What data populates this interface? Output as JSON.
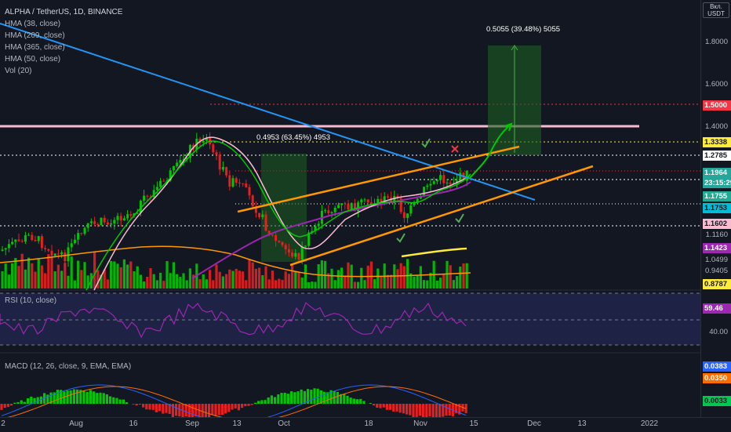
{
  "legend": {
    "symbol": "ALPHA / TetherUS, 1D, BINANCE",
    "indicators": [
      "HMA (38, close)",
      "HMA (209, close)",
      "HMA (365, close)",
      "HMA (50, close)",
      "Vol (20)"
    ]
  },
  "currency": {
    "top": "Вкл.",
    "bottom": "USDT"
  },
  "price_axis": {
    "labels": [
      "1.8000",
      "1.6000",
      "1.4000",
      "1.1160",
      "1.0499",
      "0.9405"
    ],
    "tags": [
      {
        "text": "1.5000",
        "bg": "#f23645",
        "fg": "#ffffff"
      },
      {
        "text": "1.3338",
        "bg": "#ffeb3b",
        "fg": "#131722"
      },
      {
        "text": "1.2785",
        "bg": "#ffffff",
        "fg": "#131722"
      },
      {
        "text": "1.1964",
        "bg": "#26a69a",
        "fg": "#ffffff"
      },
      {
        "text": "23:15:29",
        "bg": "#26a69a",
        "fg": "#ffffff"
      },
      {
        "text": "1.1755",
        "bg": "#22ab94",
        "fg": "#ffffff"
      },
      {
        "text": "1.1753",
        "bg": "#00bcd4",
        "fg": "#131722"
      },
      {
        "text": "1.1602",
        "bg": "#f8bbd0",
        "fg": "#131722"
      },
      {
        "text": "1.1423",
        "bg": "#9c27b0",
        "fg": "#ffffff"
      },
      {
        "text": "0.8787",
        "bg": "#ffeb3b",
        "fg": "#131722"
      }
    ]
  },
  "annotations": {
    "measure_1": "0.4953 (63.45%) 4953",
    "measure_2": "0.5055 (39.48%) 5055"
  },
  "rsi": {
    "title": "RSI (10, close)",
    "value_tag": "59.46",
    "value_bg": "#9c27b0",
    "axis_label": "40.00"
  },
  "macd": {
    "title": "MACD (12, 26, close, 9, EMA, EMA)",
    "tags": [
      {
        "text": "0.0383",
        "bg": "#2962ff",
        "fg": "#ffffff"
      },
      {
        "text": "0.0350",
        "bg": "#ff6d00",
        "fg": "#ffffff"
      },
      {
        "text": "0.0033",
        "bg": "#00c853",
        "fg": "#131722"
      }
    ]
  },
  "time_axis": [
    "2",
    "Aug",
    "16",
    "Sep",
    "13",
    "Oct",
    "18",
    "Nov",
    "15",
    "Dec",
    "13",
    "2022"
  ],
  "colors": {
    "up": "#00c800",
    "down": "#e91e1e",
    "hma38": "#ffffff",
    "hma209": "#e91e63",
    "hma365": "#ff9800",
    "trend_blue": "#2196f3",
    "channel": "#ff9800",
    "horizontal_pink": "#f8bbd0",
    "checkmark": "#4caf50",
    "cross": "#f23645"
  },
  "icons": {
    "checkmark": "check-icon",
    "cross": "cross-icon"
  }
}
